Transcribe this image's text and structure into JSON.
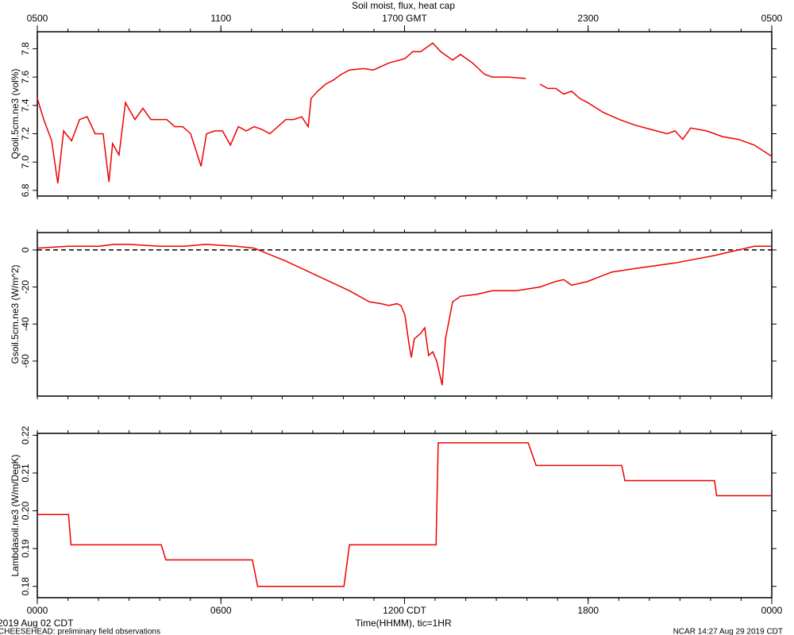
{
  "title": "Soil moist, flux, heat cap",
  "top_xticks": [
    {
      "value": 0,
      "label": "0500"
    },
    {
      "value": 6,
      "label": "1100"
    },
    {
      "value": 12,
      "label": "1700 GMT"
    },
    {
      "value": 18,
      "label": "2300"
    },
    {
      "value": 24,
      "label": "0500"
    }
  ],
  "xlabel": "Time(HHMM), tic=1HR",
  "date_label": "2019 Aug 02 CDT",
  "footer_left": "CHEESEHEAD: preliminary field observations",
  "footer_right": "NCAR 14:27 Aug 29 2019 CDT",
  "chart_data": [
    {
      "type": "line",
      "ylabel": "Qsoil.5cm.ne3 (vol%)",
      "color": "#ee0000",
      "x": [
        0,
        0.21,
        0.47,
        0.67,
        0.86,
        1.12,
        1.38,
        1.63,
        1.89,
        2.15,
        2.34,
        2.46,
        2.67,
        2.88,
        3.19,
        3.45,
        3.71,
        3.97,
        4.23,
        4.49,
        4.75,
        5.01,
        5.35,
        5.53,
        5.79,
        6.05,
        6.31,
        6.57,
        6.83,
        7.08,
        7.34,
        7.6,
        7.86,
        8.12,
        8.38,
        8.64,
        8.85,
        8.95,
        9.16,
        9.42,
        9.68,
        9.94,
        10.2,
        10.66,
        10.98,
        11.49,
        12.01,
        12.27,
        12.53,
        12.92,
        13.18,
        13.57,
        13.83,
        14.22,
        14.61,
        14.87,
        15.39,
        15.96,
        16.2,
        16.42,
        16.68,
        16.94,
        17.2,
        17.46,
        17.72,
        17.98,
        18.5,
        19.02,
        19.54,
        20.06,
        20.58,
        20.84,
        21.09,
        21.35,
        21.87,
        22.39,
        22.91,
        23.43,
        24
      ],
      "values": [
        7.45,
        7.3,
        7.15,
        6.85,
        7.22,
        7.15,
        7.3,
        7.32,
        7.2,
        7.2,
        6.86,
        7.13,
        7.05,
        7.42,
        7.3,
        7.38,
        7.3,
        7.3,
        7.3,
        7.25,
        7.25,
        7.2,
        6.97,
        7.2,
        7.22,
        7.22,
        7.12,
        7.25,
        7.22,
        7.25,
        7.23,
        7.2,
        7.25,
        7.3,
        7.3,
        7.32,
        7.25,
        7.45,
        7.5,
        7.55,
        7.58,
        7.62,
        7.65,
        7.66,
        7.65,
        7.7,
        7.73,
        7.78,
        7.78,
        7.84,
        7.78,
        7.72,
        7.76,
        7.7,
        7.62,
        7.6,
        7.6,
        7.59,
        null,
        7.55,
        7.52,
        7.52,
        7.48,
        7.5,
        7.45,
        7.42,
        7.35,
        7.3,
        7.26,
        7.23,
        7.2,
        7.22,
        7.16,
        7.24,
        7.22,
        7.18,
        7.16,
        7.12,
        7.04
      ],
      "xlim": [
        0,
        24
      ],
      "ylim": [
        6.76,
        7.92
      ],
      "yticks": [
        6.8,
        {
          "value": 7,
          "label": "7.0"
        },
        7.2,
        7.4,
        7.6,
        7.8
      ],
      "xminor": 1
    },
    {
      "type": "line",
      "ylabel": "Gsoil.5cm.ne3 (W/m^2)",
      "color": "#ee0000",
      "reference_line": 0,
      "x": [
        0,
        1,
        2,
        2.5,
        3,
        4,
        4.8,
        5.5,
        6.5,
        7.08,
        8.12,
        9.16,
        9.68,
        10.2,
        10.85,
        11.24,
        11.49,
        11.75,
        11.88,
        12.01,
        12.14,
        12.22,
        12.32,
        12.53,
        12.66,
        12.79,
        12.92,
        13.05,
        13.23,
        13.34,
        13.57,
        13.83,
        14.35,
        14.87,
        15.65,
        16.42,
        16.94,
        17.2,
        17.46,
        17.98,
        18.76,
        19.54,
        20.84,
        22.13,
        22.91,
        23.43,
        24
      ],
      "values": [
        1,
        2,
        2,
        3,
        3,
        2,
        2,
        3,
        2,
        1,
        -6,
        -14,
        -18,
        -22,
        -28,
        -29,
        -30,
        -29,
        -30,
        -35,
        -50,
        -58,
        -48,
        -45,
        -42,
        -57,
        -55,
        -60,
        -73,
        -48,
        -28,
        -25,
        -24,
        -22,
        -22,
        -20,
        -17,
        -16,
        -19,
        -17,
        -12,
        -10,
        -7,
        -3,
        0,
        2,
        2
      ],
      "xlim": [
        0,
        24
      ],
      "ylim": [
        -78.9,
        9.4
      ],
      "yticks": [
        -60,
        -40,
        -20,
        0
      ],
      "xminor": 1
    },
    {
      "type": "line",
      "ylabel": "Lambdasoil.ne3 (W/m/DegK)",
      "color": "#ee0000",
      "x": [
        0,
        1.02,
        1.1,
        4.05,
        4.2,
        7.03,
        7.2,
        10.02,
        10.2,
        13.03,
        13.1,
        16.04,
        16.3,
        19.1,
        19.2,
        22.13,
        22.2,
        24
      ],
      "values": [
        0.199,
        0.199,
        0.191,
        0.191,
        0.187,
        0.187,
        0.18,
        0.18,
        0.191,
        0.191,
        0.218,
        0.218,
        0.212,
        0.212,
        0.208,
        0.208,
        0.204,
        0.204
      ],
      "xlim": [
        0,
        24
      ],
      "ylim": [
        0.177,
        0.2205
      ],
      "yticks": [
        0.18,
        0.19,
        {
          "value": 0.2,
          "label": "0.20"
        },
        0.21,
        0.22
      ],
      "xminor": 1,
      "xticks": [
        {
          "value": 0,
          "label": "0000"
        },
        {
          "value": 6,
          "label": "0600"
        },
        {
          "value": 12,
          "label": "1200 CDT"
        },
        {
          "value": 18,
          "label": "1800"
        },
        {
          "value": 24,
          "label": "0000"
        }
      ]
    }
  ]
}
